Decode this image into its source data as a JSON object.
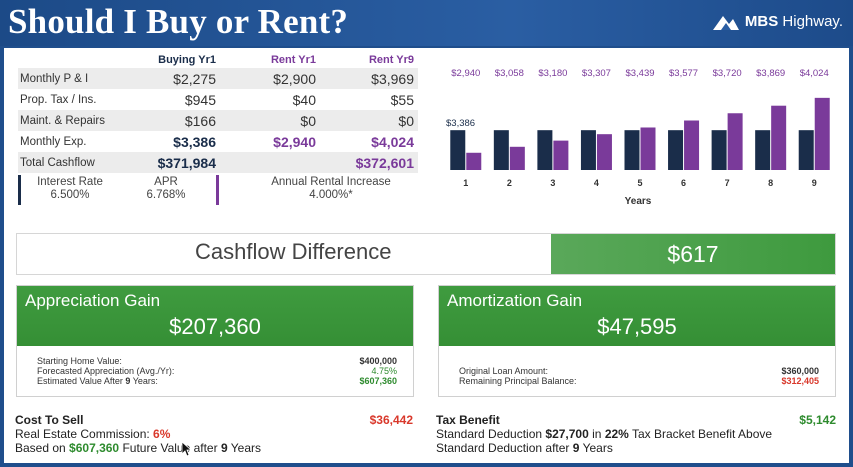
{
  "header": {
    "title": "Should I Buy or Rent?",
    "brand": "MBS Highway.",
    "brand_bold": "MBS",
    "brand_rest": "Highway."
  },
  "table": {
    "columns": [
      "",
      "Buying Yr1",
      "Rent Yr1",
      "Rent Yr9"
    ],
    "rows": [
      {
        "label": "Monthly P & I",
        "buy": "$2,275",
        "rent1": "$2,900",
        "rent9": "$3,969"
      },
      {
        "label": "Prop. Tax / Ins.",
        "buy": "$945",
        "rent1": "$40",
        "rent9": "$55"
      },
      {
        "label": "Maint. & Repairs",
        "buy": "$166",
        "rent1": "$0",
        "rent9": "$0"
      },
      {
        "label": "Monthly Exp.",
        "buy": "$3,386",
        "rent1": "$2,940",
        "rent9": "$4,024"
      },
      {
        "label": "Total Cashflow",
        "buy": "$371,984",
        "rent1": "",
        "rent9": "$372,601"
      }
    ]
  },
  "rates": {
    "interest_label": "Interest Rate",
    "interest_value": "6.500%",
    "apr_label": "APR",
    "apr_value": "6.768%",
    "rental_label": "Annual Rental Increase",
    "rental_value": "4.000%*"
  },
  "chart_data": {
    "type": "bar",
    "categories": [
      "1",
      "2",
      "3",
      "4",
      "5",
      "6",
      "7",
      "8",
      "9"
    ],
    "series": [
      {
        "values": [
          3386,
          3386,
          3386,
          3386,
          3386,
          3386,
          3386,
          3386,
          3386
        ]
      },
      {
        "values": [
          2940,
          3058,
          3180,
          3307,
          3439,
          3577,
          3720,
          3869,
          4024
        ]
      }
    ],
    "data_labels": [
      "$2,940",
      "$3,058",
      "$3,180",
      "$3,307",
      "$3,439",
      "$3,577",
      "$3,720",
      "$3,869",
      "$4,024"
    ],
    "buy_label": "$3,386",
    "xlabel": "Years",
    "ylabel": "",
    "ylim": [
      2600,
      4100
    ],
    "colors": {
      "buy": "#1a2d4a",
      "rent": "#7a3a9a"
    }
  },
  "cashflow": {
    "label": "Cashflow Difference",
    "value": "$617"
  },
  "appreciation": {
    "title": "Appreciation Gain",
    "value": "$207,360",
    "lines": [
      {
        "label": "Starting Home Value:",
        "value": "$400,000"
      },
      {
        "label": "Forecasted Appreciation (Avg./Yr):",
        "value": "4.75%"
      },
      {
        "label_pre": "Estimated Value After ",
        "label_bold": "9",
        "label_post": " Years:",
        "value": "$607,360"
      }
    ]
  },
  "amortization": {
    "title": "Amortization Gain",
    "value": "$47,595",
    "lines": [
      {
        "label": "Original Loan Amount:",
        "value": "$360,000"
      },
      {
        "label": "Remaining Principal Balance:",
        "value": "$312,405"
      }
    ]
  },
  "cost_to_sell": {
    "title": "Cost To Sell",
    "amount": "$36,442",
    "line1_pre": "Real Estate Commission: ",
    "line1_val": "6%",
    "line2_pre": "Based on ",
    "line2_val": "$607,360",
    "line2_mid": " Future Value after ",
    "line2_years": "9",
    "line2_post": " Years"
  },
  "tax_benefit": {
    "title": "Tax Benefit",
    "amount": "$5,142",
    "line1_pre": "Standard Deduction ",
    "line1_val": "$27,700",
    "line1_mid": " in ",
    "line1_pct": "22%",
    "line1_post": " Tax Bracket Benefit Above",
    "line2_pre": "Standard Deduction after ",
    "line2_years": "9",
    "line2_post": " Years"
  },
  "colors": {
    "header_bg": "#1f4e8c",
    "navy": "#1a2d4a",
    "purple": "#7a3a9a",
    "green": "#3e9a3e",
    "red": "#d9382b"
  }
}
